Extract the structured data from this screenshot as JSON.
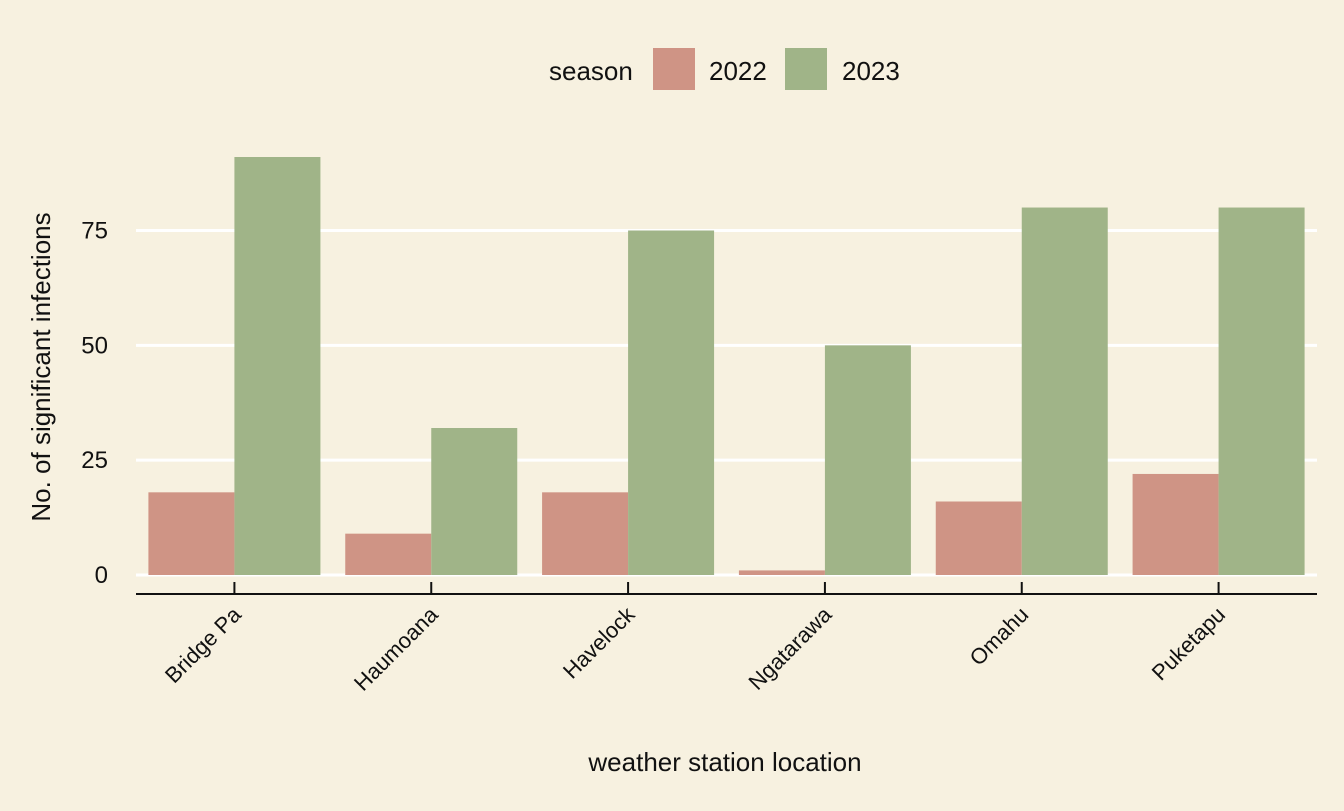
{
  "chart_data": {
    "type": "bar",
    "title": "",
    "xlabel": "weather station location",
    "ylabel": "No. of significant infections",
    "categories": [
      "Bridge Pa",
      "Haumoana",
      "Havelock",
      "Ngatarawa",
      "Omahu",
      "Puketapu"
    ],
    "series": [
      {
        "name": "2022",
        "color": "#cf9485",
        "values": [
          18,
          9,
          18,
          1,
          16,
          22
        ]
      },
      {
        "name": "2023",
        "color": "#a0b488",
        "values": [
          91,
          32,
          75,
          50,
          80,
          80
        ]
      }
    ],
    "ylim": [
      0,
      91
    ],
    "yticks": [
      "0",
      "25",
      "50",
      "75"
    ],
    "legend": {
      "title": "season",
      "position": "top-center"
    },
    "grid": "horizontal major lines",
    "background": "#f7f1e0"
  }
}
